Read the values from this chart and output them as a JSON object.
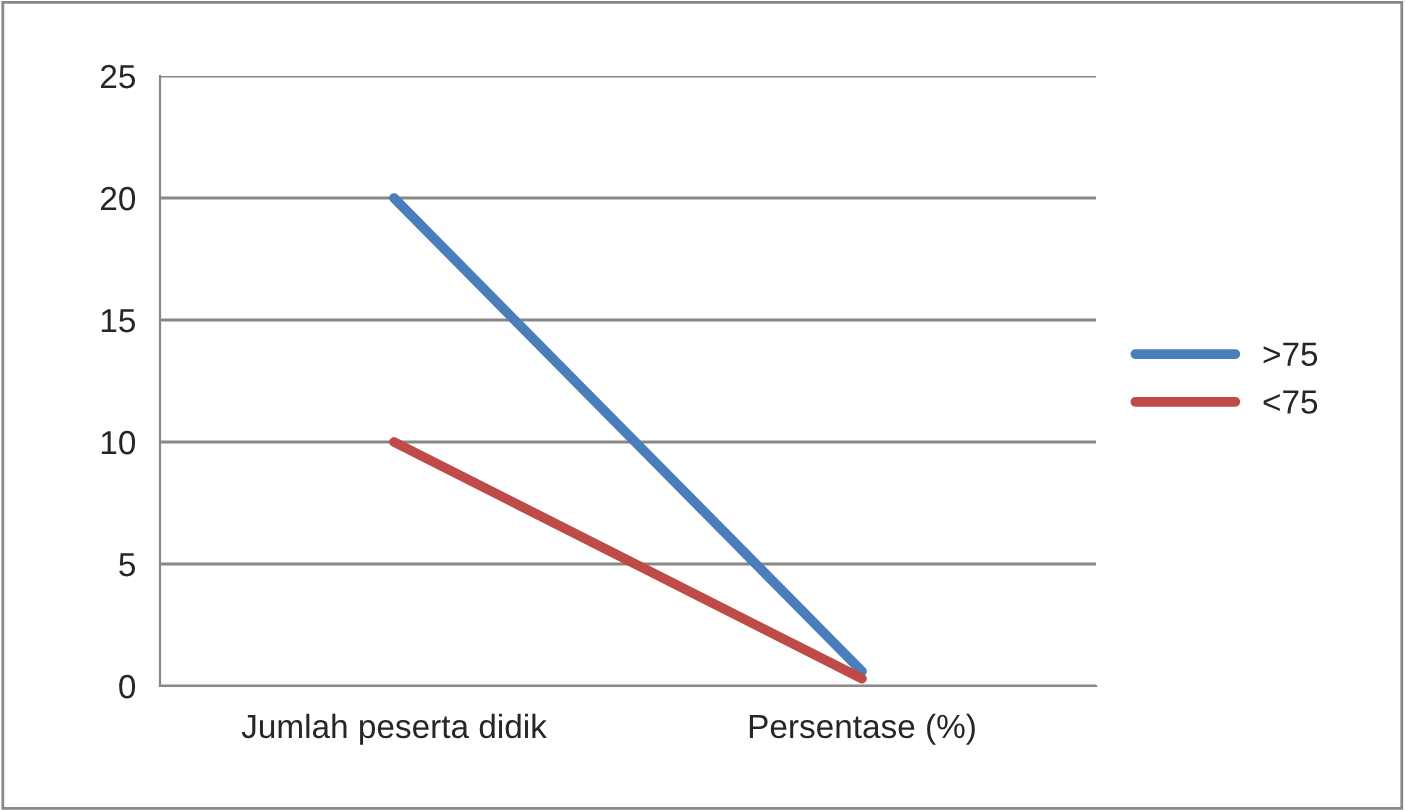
{
  "chart_data": {
    "type": "line",
    "categories": [
      "Jumlah peserta didik",
      "Persentase (%)"
    ],
    "series": [
      {
        "name": ">75",
        "color": "#4a7ebb",
        "values": [
          20,
          0.6
        ]
      },
      {
        "name": "<75",
        "color": "#be4b48",
        "values": [
          10,
          0.3
        ]
      }
    ],
    "ylim": [
      0,
      25
    ],
    "yticks": [
      0,
      5,
      10,
      15,
      20,
      25
    ],
    "grid": "y",
    "legend": "right",
    "marker": "none",
    "line_style": "solid"
  }
}
